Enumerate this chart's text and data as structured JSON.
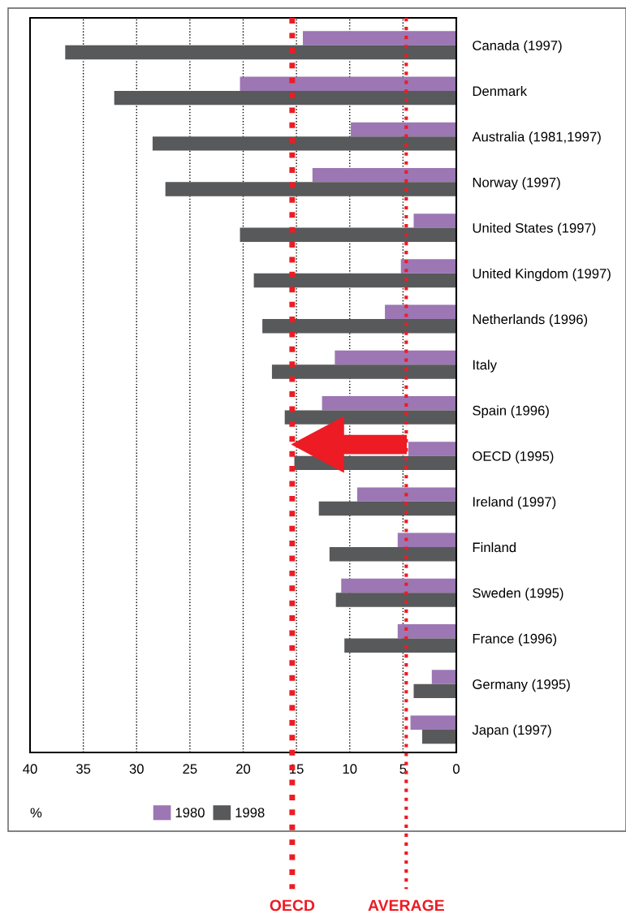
{
  "chart_data": {
    "type": "bar",
    "orientation": "horizontal",
    "xlabel": "%",
    "categories": [
      "Canada (1997)",
      "Denmark",
      "Australia (1981,1997)",
      "Norway (1997)",
      "United States (1997)",
      "United Kingdom (1997)",
      "Netherlands (1996)",
      "Italy",
      "Spain (1996)",
      "OECD (1995)",
      "Ireland (1997)",
      "Finland",
      "Sweden (1995)",
      "France (1996)",
      "Germany (1995)",
      "Japan (1997)"
    ],
    "series": [
      {
        "name": "1980",
        "color": "#9c77b4",
        "values": [
          14.4,
          20.3,
          9.9,
          13.5,
          4.0,
          5.2,
          6.7,
          11.4,
          12.6,
          4.5,
          9.3,
          5.5,
          10.8,
          5.5,
          2.3,
          4.3
        ]
      },
      {
        "name": "1998",
        "color": "#58595b",
        "values": [
          36.7,
          32.1,
          28.5,
          27.3,
          20.3,
          19.0,
          18.2,
          17.3,
          16.1,
          15.2,
          12.9,
          11.9,
          11.3,
          10.5,
          4.0,
          3.2
        ]
      }
    ],
    "xlim": [
      40,
      0
    ],
    "xticks": [
      40,
      35,
      30,
      25,
      20,
      15,
      10,
      5,
      0
    ],
    "grid": "x",
    "legend": "bottom",
    "ref_lines": [
      {
        "axis": "x",
        "value": 15.4,
        "label": "OECD",
        "color": "#ed1c24",
        "line_style": "dotted"
      },
      {
        "axis": "x",
        "value": 4.7,
        "label": "AVERAGE",
        "color": "#ed1c24",
        "line_style": "dotted"
      }
    ]
  }
}
